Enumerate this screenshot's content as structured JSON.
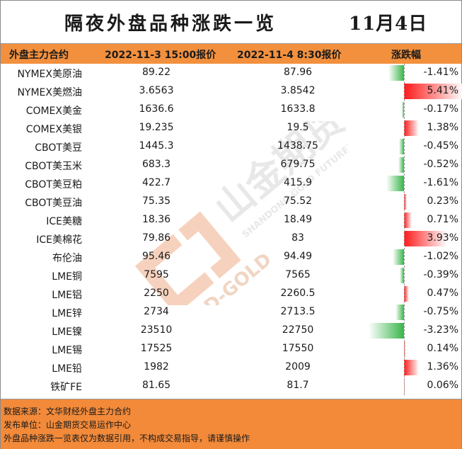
{
  "title": "隔夜外盘品种涨跌一览",
  "date": "11月4日",
  "header": {
    "col_name": "外盘主力合约",
    "col_prev": "2022-11-3 15:00报价",
    "col_cur": "2022-11-4 8:30报价",
    "col_change": "涨跌幅"
  },
  "colors": {
    "header_bg": "#f2903e",
    "positive": "#ff1a1a",
    "negative": "#39b54a",
    "footer_bg": "#f28a3a"
  },
  "rows": [
    {
      "name": "NYMEX美原油",
      "prev": "89.22",
      "cur": "87.96",
      "change": "-1.41%",
      "value": -1.41
    },
    {
      "name": "NYMEX美燃油",
      "prev": "3.6563",
      "cur": "3.8542",
      "change": "5.41%",
      "value": 5.41
    },
    {
      "name": "COMEX美金",
      "prev": "1636.6",
      "cur": "1633.8",
      "change": "-0.17%",
      "value": -0.17
    },
    {
      "name": "COMEX美银",
      "prev": "19.235",
      "cur": "19.5",
      "change": "1.38%",
      "value": 1.38
    },
    {
      "name": "CBOT美豆",
      "prev": "1445.3",
      "cur": "1438.75",
      "change": "-0.45%",
      "value": -0.45
    },
    {
      "name": "CBOT美玉米",
      "prev": "683.3",
      "cur": "679.75",
      "change": "-0.52%",
      "value": -0.52
    },
    {
      "name": "CBOT美豆粕",
      "prev": "422.7",
      "cur": "415.9",
      "change": "-1.61%",
      "value": -1.61
    },
    {
      "name": "CBOT美豆油",
      "prev": "75.35",
      "cur": "75.52",
      "change": "0.23%",
      "value": 0.23
    },
    {
      "name": "ICE美糖",
      "prev": "18.36",
      "cur": "18.49",
      "change": "0.71%",
      "value": 0.71
    },
    {
      "name": "ICE美棉花",
      "prev": "79.86",
      "cur": "83",
      "change": "3.93%",
      "value": 3.93
    },
    {
      "name": "布伦油",
      "prev": "95.46",
      "cur": "94.49",
      "change": "-1.02%",
      "value": -1.02
    },
    {
      "name": "LME铜",
      "prev": "7595",
      "cur": "7565",
      "change": "-0.39%",
      "value": -0.39
    },
    {
      "name": "LME铝",
      "prev": "2250",
      "cur": "2260.5",
      "change": "0.47%",
      "value": 0.47
    },
    {
      "name": "LME锌",
      "prev": "2734",
      "cur": "2713.5",
      "change": "-0.75%",
      "value": -0.75
    },
    {
      "name": "LME镍",
      "prev": "23510",
      "cur": "22750",
      "change": "-3.23%",
      "value": -3.23
    },
    {
      "name": "LME锡",
      "prev": "17525",
      "cur": "17550",
      "change": "0.14%",
      "value": 0.14
    },
    {
      "name": "LME铅",
      "prev": "1982",
      "cur": "2009",
      "change": "1.36%",
      "value": 1.36
    },
    {
      "name": "铁矿FE",
      "prev": "81.65",
      "cur": "81.7",
      "change": "0.06%",
      "value": 0.06
    }
  ],
  "footer": {
    "source": "数据来源：文华财经外盘主力合约",
    "publisher": "发布单位：山金期货交易运作中心",
    "disclaimer": "外盘品种涨跌一览表仅为数据引用，不构成交易指导，请谨慎操作"
  },
  "watermark": {
    "cn": "山金期货",
    "en": "SHANDONG GOLD FUTURES",
    "logo_text": "SD-GOLD"
  }
}
